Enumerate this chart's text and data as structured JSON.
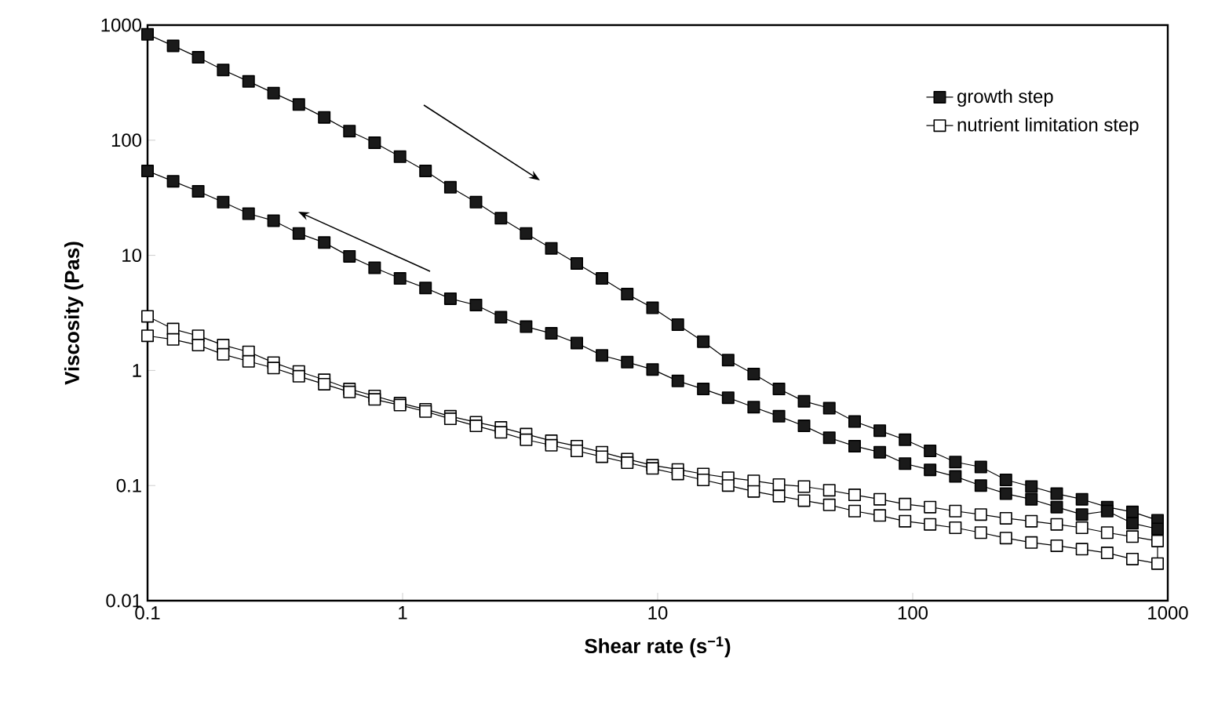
{
  "chart_data": {
    "type": "line",
    "xlabel": "Shear rate (s$^{−1}$)",
    "ylabel": "Viscosity (Pas)",
    "log": "xy",
    "xlim": [
      0.1,
      1000
    ],
    "ylim": [
      0.01,
      1000
    ],
    "xticks": [
      0.1,
      1,
      10,
      100,
      1000
    ],
    "yticks": [
      0.01,
      0.1,
      1,
      10,
      100,
      1000
    ],
    "grid": false,
    "legend": "top right",
    "marker": "square",
    "line_style": "solid",
    "series": [
      {
        "name": "growth step",
        "color": "#1a1a1a",
        "x": [
          0.1,
          0.126,
          0.158,
          0.198,
          0.249,
          0.312,
          0.392,
          0.493,
          0.619,
          0.777,
          0.977,
          1.23,
          1.54,
          1.94,
          2.43,
          3.05,
          3.83,
          4.82,
          6.05,
          7.6,
          9.55,
          12,
          15.1,
          18.9,
          23.8,
          29.9,
          37.5,
          47.1,
          59.2,
          74.3,
          93.3,
          117,
          147,
          185,
          232,
          292,
          367,
          461,
          579,
          727,
          912,
          912,
          727,
          579,
          461,
          367,
          292,
          232,
          185,
          147,
          117,
          93.3,
          74.3,
          59.2,
          47.1,
          37.5,
          29.9,
          23.8,
          18.9,
          15.1,
          12,
          9.55,
          7.6,
          6.05,
          4.82,
          3.83,
          3.05,
          2.43,
          1.94,
          1.54,
          1.23,
          0.977,
          0.777,
          0.619,
          0.493,
          0.392,
          0.312,
          0.249,
          0.198,
          0.158,
          0.126,
          0.1
        ],
        "values": [
          832,
          661,
          525,
          407,
          324,
          257,
          204,
          158,
          120,
          95,
          72,
          54,
          39,
          29,
          21,
          15.5,
          11.5,
          8.5,
          6.3,
          4.6,
          3.5,
          2.5,
          1.78,
          1.23,
          0.93,
          0.69,
          0.54,
          0.47,
          0.36,
          0.3,
          0.25,
          0.2,
          0.16,
          0.145,
          0.112,
          0.098,
          0.085,
          0.076,
          0.065,
          0.059,
          0.05,
          0.042,
          0.047,
          0.06,
          0.056,
          0.065,
          0.076,
          0.085,
          0.1,
          0.12,
          0.137,
          0.155,
          0.195,
          0.22,
          0.26,
          0.33,
          0.4,
          0.48,
          0.58,
          0.69,
          0.81,
          1.02,
          1.18,
          1.35,
          1.73,
          2.1,
          2.4,
          2.9,
          3.7,
          4.2,
          5.2,
          6.3,
          7.8,
          9.8,
          12.9,
          15.5,
          20,
          23,
          29,
          36,
          44,
          54
        ]
      },
      {
        "name": "nutrient limitation step",
        "color": "#ffffff",
        "x": [
          0.1,
          0.126,
          0.158,
          0.198,
          0.249,
          0.312,
          0.392,
          0.493,
          0.619,
          0.777,
          0.977,
          1.23,
          1.54,
          1.94,
          2.43,
          3.05,
          3.83,
          4.82,
          6.05,
          7.6,
          9.55,
          12,
          15.1,
          18.9,
          23.8,
          29.9,
          37.5,
          47.1,
          59.2,
          74.3,
          93.3,
          117,
          147,
          185,
          232,
          292,
          367,
          461,
          579,
          727,
          912,
          912,
          727,
          579,
          461,
          367,
          292,
          232,
          185,
          147,
          117,
          93.3,
          74.3,
          59.2,
          47.1,
          37.5,
          29.9,
          23.8,
          18.9,
          15.1,
          12,
          9.55,
          7.6,
          6.05,
          4.82,
          3.83,
          3.05,
          2.43,
          1.94,
          1.54,
          1.23,
          0.977,
          0.777,
          0.619,
          0.493,
          0.392,
          0.312,
          0.249,
          0.198,
          0.158,
          0.126,
          0.1
        ],
        "values": [
          2.95,
          2.29,
          2,
          1.66,
          1.45,
          1.17,
          0.98,
          0.83,
          0.69,
          0.6,
          0.52,
          0.46,
          0.4,
          0.355,
          0.32,
          0.28,
          0.245,
          0.22,
          0.195,
          0.17,
          0.15,
          0.138,
          0.126,
          0.117,
          0.11,
          0.102,
          0.098,
          0.091,
          0.083,
          0.076,
          0.069,
          0.065,
          0.06,
          0.056,
          0.052,
          0.049,
          0.046,
          0.043,
          0.039,
          0.036,
          0.033,
          0.021,
          0.023,
          0.026,
          0.028,
          0.03,
          0.032,
          0.035,
          0.039,
          0.043,
          0.046,
          0.049,
          0.055,
          0.06,
          0.068,
          0.074,
          0.081,
          0.089,
          0.1,
          0.112,
          0.126,
          0.141,
          0.158,
          0.178,
          0.2,
          0.224,
          0.25,
          0.29,
          0.33,
          0.38,
          0.44,
          0.5,
          0.56,
          0.65,
          0.76,
          0.89,
          1.05,
          1.2,
          1.38,
          1.66,
          1.86,
          2
        ]
      }
    ]
  }
}
